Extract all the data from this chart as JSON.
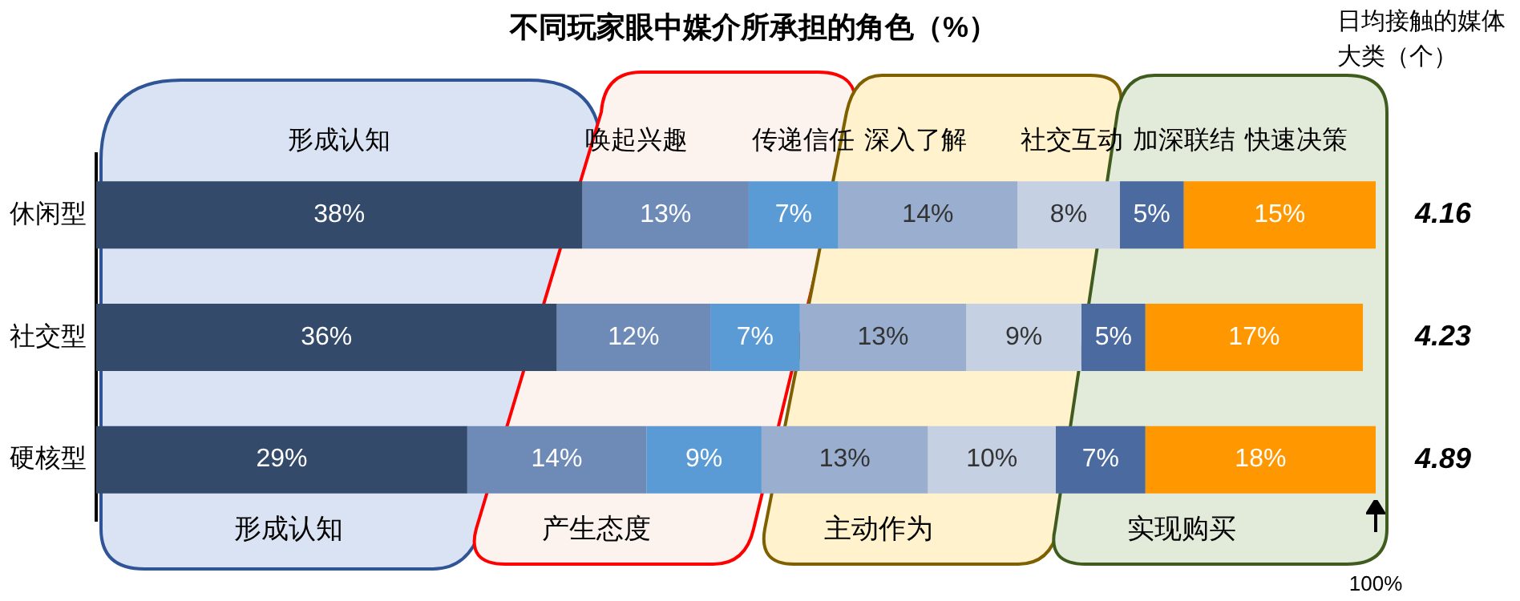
{
  "chart_data": {
    "type": "bar",
    "orientation": "horizontal",
    "stacked": true,
    "title": "不同玩家眼中媒介所承担的角色（%）",
    "categories": [
      "休闲型",
      "社交型",
      "硬核型"
    ],
    "xlim": [
      0,
      100
    ],
    "tick_labels": "y",
    "legend": false,
    "series": [
      {
        "name": "形成认知",
        "color": "#344a6b",
        "values": [
          38,
          36,
          29
        ],
        "value_labels": [
          "38%",
          "36%",
          "29%"
        ]
      },
      {
        "name": "唤起兴趣",
        "color": "#6e8bb8",
        "values": [
          13,
          12,
          14
        ],
        "value_labels": [
          "13%",
          "12%",
          "14%"
        ]
      },
      {
        "name": "传递信任",
        "color": "#5b9bd5",
        "values": [
          7,
          7,
          9
        ],
        "value_labels": [
          "7%",
          "7%",
          "9%"
        ]
      },
      {
        "name": "深入了解",
        "color": "#9aafcf",
        "values": [
          14,
          13,
          13
        ],
        "value_labels": [
          "14%",
          "13%",
          "13%"
        ]
      },
      {
        "name": "社交互动",
        "color": "#c5d0e3",
        "values": [
          8,
          9,
          10
        ],
        "value_labels": [
          "8%",
          "9%",
          "10%"
        ]
      },
      {
        "name": "加深联结",
        "color": "#4a6aa0",
        "values": [
          5,
          5,
          7
        ],
        "value_labels": [
          "5%",
          "5%",
          "7%"
        ]
      },
      {
        "name": "快速决策",
        "color": "#ff9800",
        "values": [
          15,
          17,
          18
        ],
        "value_labels": [
          "15%",
          "17%",
          "18%"
        ]
      }
    ],
    "annotations": [
      "日均接触的媒体大类（个）",
      "4.16",
      "4.23",
      "4.89",
      "形成认知",
      "产生态度",
      "主动作为",
      "实现购买",
      "100%"
    ]
  }
}
